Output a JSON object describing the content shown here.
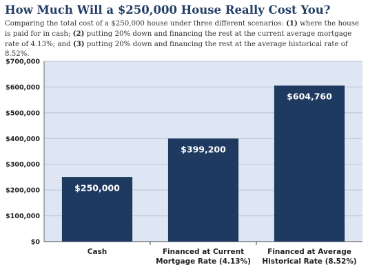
{
  "header": {
    "title": "How Much Will a $250,000 House Really Cost You?",
    "subtitle_parts": [
      "Comparing the total cost of a $250,000 house under three different scenarios: ",
      "(1)",
      " where the house is paid for in cash; ",
      "(2)",
      " putting 20% down and financing the rest at the current average mortgage rate of 4.13%; and ",
      "(3)",
      " putting 20% down and financing the rest at the average historical rate of 8.52%."
    ]
  },
  "colors": {
    "bar": "#1f3a60",
    "plot_background": "#dde6f2",
    "grid": "#b8c4d6",
    "title": "#243f66"
  },
  "chart_data": {
    "type": "bar",
    "title": "How Much Will a $250,000 House Really Cost You?",
    "xlabel": "",
    "ylabel": "",
    "ylim": [
      0,
      700000
    ],
    "yticks": [
      0,
      100000,
      200000,
      300000,
      400000,
      500000,
      600000,
      700000
    ],
    "ytick_labels": [
      "$0",
      "$100,000",
      "$200,000",
      "$300,000",
      "$400,000",
      "$500,000",
      "$600,000",
      "$700,000"
    ],
    "categories": [
      [
        "Cash"
      ],
      [
        "Financed at Current",
        "Mortgage Rate (4.13%)"
      ],
      [
        "Financed at Average",
        "Historical Rate (8.52%)"
      ]
    ],
    "values": [
      250000,
      399200,
      604760
    ],
    "data_labels": [
      "$250,000",
      "$399,200",
      "$604,760"
    ],
    "grid": true,
    "legend": "none"
  }
}
